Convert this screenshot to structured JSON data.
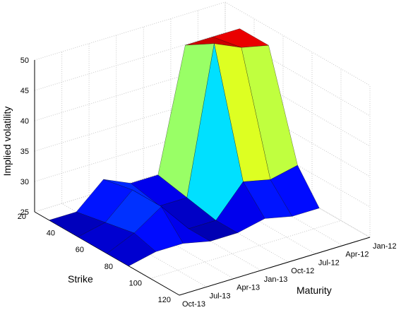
{
  "chart_data": {
    "type": "surface",
    "xlabel": "Maturity",
    "ylabel": "Strike",
    "zlabel": "Implied volatility",
    "maturities": [
      "Jan-12",
      "Apr-12",
      "Jul-12",
      "Oct-12",
      "Jan-13",
      "Apr-13",
      "Jul-13",
      "Oct-13"
    ],
    "strikes": [
      20,
      40,
      60,
      80,
      100,
      120
    ],
    "zlim": [
      25,
      50
    ],
    "z_ticks": [
      25,
      30,
      35,
      40,
      45,
      50
    ],
    "colormap": "jet",
    "grid": true,
    "surface_points": [
      {
        "maturity": "Jan-12",
        "strike": 30,
        "iv": 47
      },
      {
        "maturity": "Jan-12",
        "strike": 50,
        "iv": 47
      },
      {
        "maturity": "Jan-12",
        "strike": 70,
        "iv": 30
      },
      {
        "maturity": "Jan-12",
        "strike": 85,
        "iv": 25
      },
      {
        "maturity": "Apr-12",
        "strike": 30,
        "iv": 47
      },
      {
        "maturity": "Apr-12",
        "strike": 50,
        "iv": 48
      },
      {
        "maturity": "Apr-12",
        "strike": 70,
        "iv": 29
      },
      {
        "maturity": "Apr-12",
        "strike": 85,
        "iv": 25
      },
      {
        "maturity": "Jul-12",
        "strike": 30,
        "iv": 47
      },
      {
        "maturity": "Jul-12",
        "strike": 50,
        "iv": 50
      },
      {
        "maturity": "Jul-12",
        "strike": 70,
        "iv": 30
      },
      {
        "maturity": "Jul-12",
        "strike": 85,
        "iv": 26
      },
      {
        "maturity": "Oct-12",
        "strike": 30,
        "iv": 27
      },
      {
        "maturity": "Oct-12",
        "strike": 50,
        "iv": 26
      },
      {
        "maturity": "Oct-12",
        "strike": 70,
        "iv": 25
      },
      {
        "maturity": "Oct-12",
        "strike": 85,
        "iv": 25
      },
      {
        "maturity": "Jan-13",
        "strike": 30,
        "iv": 27
      },
      {
        "maturity": "Jan-13",
        "strike": 50,
        "iv": 26
      },
      {
        "maturity": "Jan-13",
        "strike": 70,
        "iv": 25
      },
      {
        "maturity": "Jan-13",
        "strike": 85,
        "iv": 25
      },
      {
        "maturity": "Apr-13",
        "strike": 30,
        "iv": 29
      },
      {
        "maturity": "Apr-13",
        "strike": 50,
        "iv": 30
      },
      {
        "maturity": "Apr-13",
        "strike": 70,
        "iv": 30
      },
      {
        "maturity": "Apr-13",
        "strike": 85,
        "iv": 26
      },
      {
        "maturity": "Jul-13",
        "strike": 30,
        "iv": 25
      },
      {
        "maturity": "Jul-13",
        "strike": 50,
        "iv": 26
      },
      {
        "maturity": "Jul-13",
        "strike": 70,
        "iv": 27
      },
      {
        "maturity": "Jul-13",
        "strike": 85,
        "iv": 26
      },
      {
        "maturity": "Oct-13",
        "strike": 30,
        "iv": 25
      },
      {
        "maturity": "Oct-13",
        "strike": 50,
        "iv": 25
      },
      {
        "maturity": "Oct-13",
        "strike": 70,
        "iv": 25
      },
      {
        "maturity": "Oct-13",
        "strike": 85,
        "iv": 25
      }
    ]
  }
}
